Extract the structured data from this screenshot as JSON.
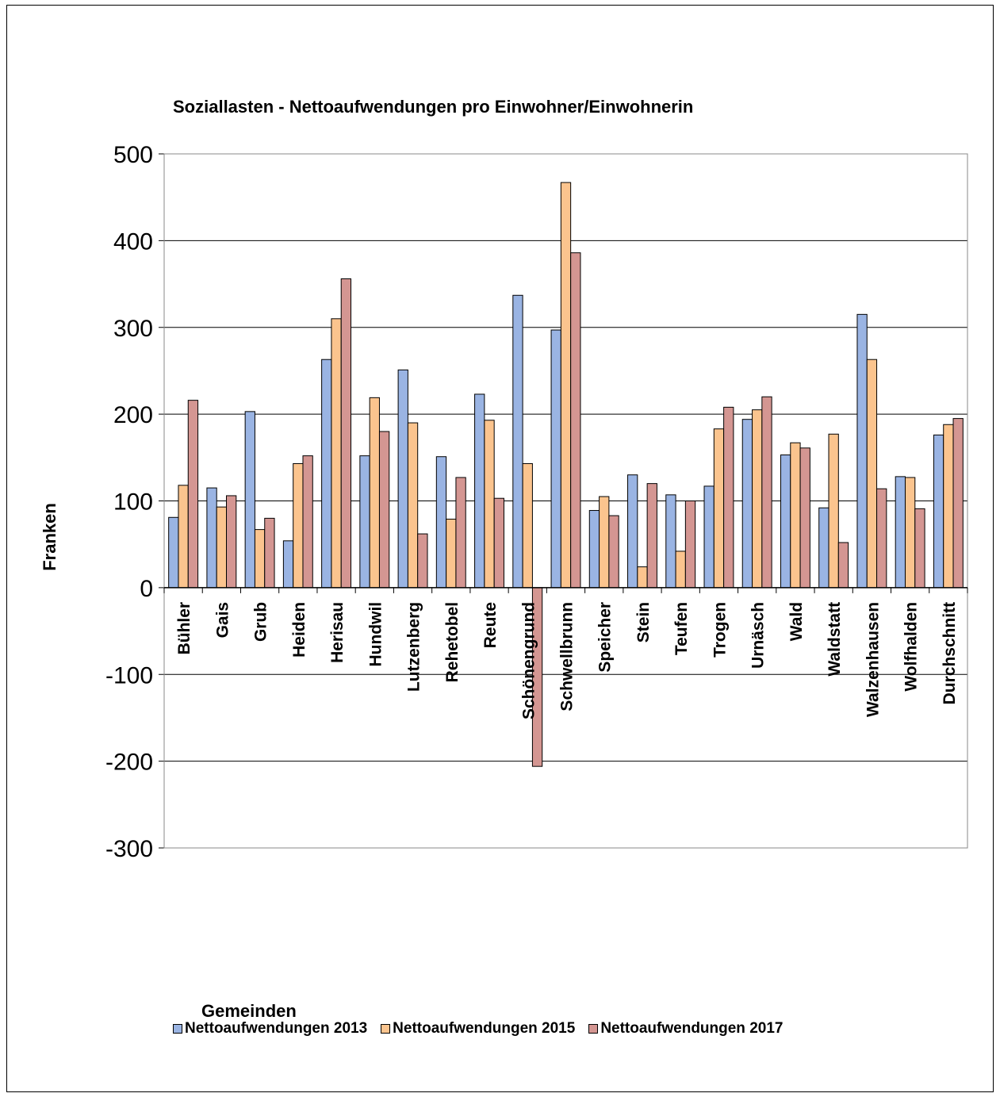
{
  "chart_data": {
    "type": "bar",
    "title": "Soziallasten - Nettoaufwendungen pro Einwohner/Einwohnerin",
    "xlabel": "Gemeinden",
    "ylabel": "Franken",
    "ylim": [
      -300,
      500
    ],
    "yticks": [
      -300,
      -200,
      -100,
      0,
      100,
      200,
      300,
      400,
      500
    ],
    "grid": true,
    "legend_position": "bottom",
    "categories": [
      "Bühler",
      "Gais",
      "Grub",
      "Heiden",
      "Herisau",
      "Hundwil",
      "Lutzenberg",
      "Rehetobel",
      "Reute",
      "Schönengrund",
      "Schwellbrunn",
      "Speicher",
      "Stein",
      "Teufen",
      "Trogen",
      "Urnäsch",
      "Wald",
      "Waldstatt",
      "Walzenhausen",
      "Wolfhalden",
      "Durchschnitt"
    ],
    "series": [
      {
        "name": "Nettoaufwendungen 2013",
        "color": "#9AB4E3",
        "values": [
          81,
          115,
          203,
          54,
          263,
          152,
          251,
          151,
          223,
          337,
          297,
          89,
          130,
          107,
          117,
          194,
          153,
          92,
          315,
          128,
          176
        ]
      },
      {
        "name": "Nettoaufwendungen 2015",
        "color": "#FBC48E",
        "values": [
          118,
          93,
          67,
          143,
          310,
          219,
          190,
          79,
          193,
          143,
          467,
          105,
          24,
          42,
          183,
          205,
          167,
          177,
          263,
          127,
          188
        ]
      },
      {
        "name": "Nettoaufwendungen 2017",
        "color": "#D49692",
        "values": [
          216,
          106,
          80,
          152,
          356,
          180,
          62,
          127,
          103,
          -206,
          386,
          83,
          120,
          100,
          208,
          220,
          161,
          52,
          114,
          91,
          195
        ]
      }
    ]
  }
}
